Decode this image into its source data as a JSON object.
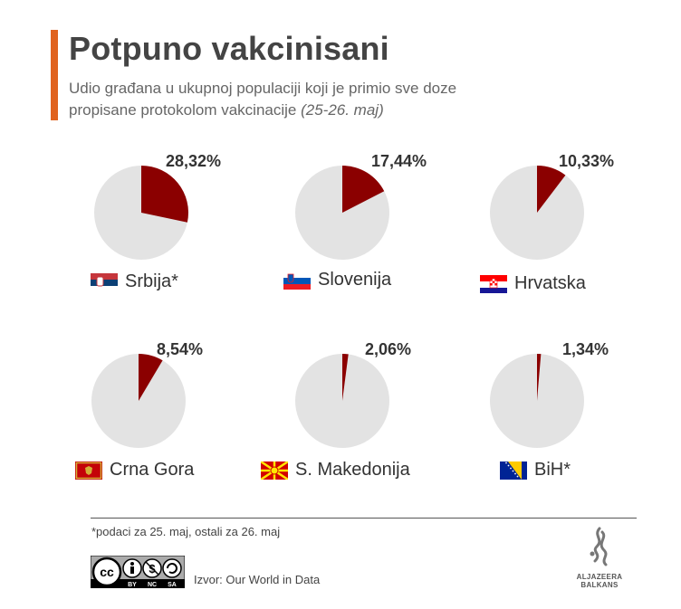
{
  "colors": {
    "accent": "#e0631f",
    "slice": "#8b0000",
    "pie_bg": "#e3e3e3"
  },
  "header": {
    "title": "Potpuno vakcinisani",
    "subtitle_line1": "Udio građana u ukupnoj populaciji koji je primio sve doze",
    "subtitle_line2": "propisane protokolom vakcinacije",
    "subtitle_date": "(25-26. maj)"
  },
  "chart_data": {
    "type": "pie",
    "series": [
      {
        "name": "Srbija*",
        "value": 28.32,
        "label": "28,32%",
        "flag": "serbia-flag-icon"
      },
      {
        "name": "Slovenija",
        "value": 17.44,
        "label": "17,44%",
        "flag": "slovenia-flag-icon"
      },
      {
        "name": "Hrvatska",
        "value": 10.33,
        "label": "10,33%",
        "flag": "croatia-flag-icon"
      },
      {
        "name": "Crna Gora",
        "value": 8.54,
        "label": "8,54%",
        "flag": "montenegro-flag-icon"
      },
      {
        "name": "S. Makedonija",
        "value": 2.06,
        "label": "2,06%",
        "flag": "north-macedonia-flag-icon"
      },
      {
        "name": "BiH*",
        "value": 1.34,
        "label": "1,34%",
        "flag": "bosnia-flag-icon"
      }
    ]
  },
  "footer": {
    "note": "*podaci za 25. maj, ostali za 26. maj",
    "source": "Izvor: Our World in Data",
    "license_badge": "cc-by-nc-sa-icon",
    "license_labels": [
      "BY",
      "NC",
      "SA"
    ],
    "logo_line1": "ALJAZEERA",
    "logo_line2": "BALKANS"
  }
}
